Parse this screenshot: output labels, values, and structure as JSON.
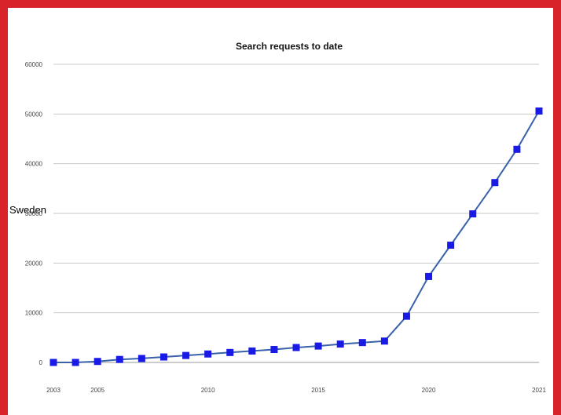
{
  "chart_data": {
    "type": "line",
    "title": "Search requests to date",
    "side_label": "Sweden",
    "x_ticks": [
      "2003",
      "2005",
      "2010",
      "2015",
      "2020",
      "2021"
    ],
    "y_ticks": [
      "0",
      "10000",
      "20000",
      "30000",
      "40000",
      "50000",
      "60000"
    ],
    "ylim": [
      0,
      60000
    ],
    "grid": true,
    "legend": "none",
    "series": [
      {
        "line_color": "#3a62a8",
        "marker_color": "#1a1ae6",
        "values": [
          0,
          0,
          200,
          600,
          800,
          1100,
          1400,
          1700,
          2000,
          2300,
          2600,
          3000,
          3300,
          3700,
          4000,
          4300,
          9300,
          17300,
          23600,
          29900,
          36200,
          42900,
          50600
        ]
      }
    ]
  }
}
